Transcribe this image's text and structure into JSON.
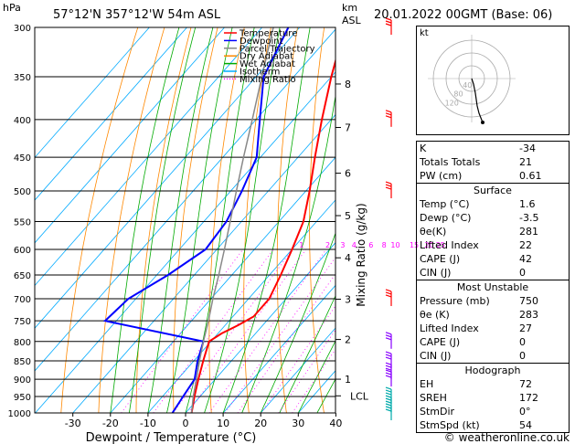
{
  "header": {
    "hpa_label": "hPa",
    "location": "57°12'N  357°12'W  54m  ASL",
    "km_label": "km",
    "asl_label": "ASL",
    "datetime": "20.01.2022  00GMT  (Base: 06)"
  },
  "footer": {
    "credit": "© weatheronline.co.uk"
  },
  "legend": [
    {
      "label": "Temperature",
      "color": "#ff0000"
    },
    {
      "label": "Dewpoint",
      "color": "#0000ff"
    },
    {
      "label": "Parcel Trajectory",
      "color": "#888888"
    },
    {
      "label": "Dry Adiabat",
      "color": "#ff8800"
    },
    {
      "label": "Wet Adiabat",
      "color": "#00aa00"
    },
    {
      "label": "Isotherm",
      "color": "#00aaff"
    },
    {
      "label": "Mixing Ratio",
      "color": "#ff00ff"
    }
  ],
  "chart_data": {
    "type": "line",
    "subtype": "skew-t log-p",
    "xlabel": "Dewpoint / Temperature (°C)",
    "ylabel_right": "Mixing Ratio (g/kg)",
    "x_ticks": [
      -30,
      -20,
      -10,
      0,
      10,
      20,
      30,
      40
    ],
    "pressure_levels": [
      300,
      350,
      400,
      450,
      500,
      550,
      600,
      650,
      700,
      750,
      800,
      850,
      900,
      950,
      1000
    ],
    "km_ticks": [
      {
        "km": "8",
        "p": 358
      },
      {
        "km": "7",
        "p": 410
      },
      {
        "km": "6",
        "p": 473
      },
      {
        "km": "5",
        "p": 540
      },
      {
        "km": "4",
        "p": 616
      },
      {
        "km": "3",
        "p": 701
      },
      {
        "km": "2",
        "p": 795
      },
      {
        "km": "1",
        "p": 900
      },
      {
        "km": "LCL",
        "p": 948
      }
    ],
    "mixing_ratio_labels": [
      {
        "label": "1",
        "p": 600,
        "t": -7.5
      },
      {
        "label": "2",
        "p": 600,
        "t": -0.5
      },
      {
        "label": "3",
        "p": 600,
        "t": 3.5
      },
      {
        "label": "4",
        "p": 600,
        "t": 6.5
      },
      {
        "label": "6",
        "p": 600,
        "t": 11
      },
      {
        "label": "8",
        "p": 600,
        "t": 14.5
      },
      {
        "label": "10",
        "p": 600,
        "t": 17.5
      },
      {
        "label": "15",
        "p": 600,
        "t": 22.5
      },
      {
        "label": "20",
        "p": 600,
        "t": 26.5
      },
      {
        "label": "25",
        "p": 600,
        "t": 29.5
      }
    ],
    "series": [
      {
        "name": "Temperature",
        "color": "#ff0000",
        "points": [
          [
            1000,
            1.6
          ],
          [
            950,
            -1.5
          ],
          [
            900,
            -4.5
          ],
          [
            850,
            -7.5
          ],
          [
            800,
            -10.5
          ],
          [
            780,
            -9
          ],
          [
            760,
            -6.5
          ],
          [
            740,
            -4.5
          ],
          [
            700,
            -4.5
          ],
          [
            650,
            -7
          ],
          [
            600,
            -10
          ],
          [
            550,
            -13.5
          ],
          [
            500,
            -19
          ],
          [
            450,
            -25.5
          ],
          [
            400,
            -32.5
          ],
          [
            350,
            -40
          ],
          [
            300,
            -48
          ]
        ]
      },
      {
        "name": "Dewpoint",
        "color": "#0000ff",
        "points": [
          [
            1000,
            -3.5
          ],
          [
            950,
            -4.5
          ],
          [
            900,
            -5.5
          ],
          [
            850,
            -9
          ],
          [
            800,
            -12
          ],
          [
            750,
            -43
          ],
          [
            700,
            -42
          ],
          [
            650,
            -37
          ],
          [
            600,
            -33
          ],
          [
            550,
            -34
          ],
          [
            500,
            -37
          ],
          [
            450,
            -41
          ],
          [
            400,
            -49
          ],
          [
            350,
            -58
          ],
          [
            300,
            -63
          ]
        ]
      },
      {
        "name": "Parcel Trajectory",
        "color": "#888888",
        "points": [
          [
            1000,
            1.6
          ],
          [
            950,
            -1.8
          ],
          [
            900,
            -5
          ],
          [
            850,
            -8.5
          ],
          [
            800,
            -12
          ],
          [
            750,
            -15.5
          ],
          [
            700,
            -19.5
          ],
          [
            650,
            -23.5
          ],
          [
            600,
            -28
          ],
          [
            550,
            -33
          ],
          [
            500,
            -38.5
          ],
          [
            450,
            -44.5
          ],
          [
            400,
            -51
          ],
          [
            350,
            -58.5
          ],
          [
            300,
            -67
          ]
        ]
      }
    ],
    "wind_barbs": [
      300,
      400,
      500,
      700,
      800,
      850,
      880,
      900,
      950,
      975,
      1000
    ],
    "hodograph": {
      "label": "kt",
      "ring_labels": [
        "40",
        "80",
        "120"
      ],
      "track": [
        [
          0,
          0
        ],
        [
          2,
          -6
        ],
        [
          4,
          -16
        ],
        [
          6,
          -30
        ],
        [
          8,
          -38
        ],
        [
          12,
          -48
        ]
      ]
    }
  },
  "indices": {
    "top": [
      {
        "k": "K",
        "v": "-34"
      },
      {
        "k": "Totals Totals",
        "v": "21"
      },
      {
        "k": "PW (cm)",
        "v": "0.61"
      }
    ],
    "surface": {
      "title": "Surface",
      "rows": [
        {
          "k": "Temp (°C)",
          "v": "1.6"
        },
        {
          "k": "Dewp (°C)",
          "v": "-3.5"
        },
        {
          "k": "θe(K)",
          "v": "281"
        },
        {
          "k": "Lifted Index",
          "v": "22"
        },
        {
          "k": "CAPE (J)",
          "v": "42"
        },
        {
          "k": "CIN (J)",
          "v": "0"
        }
      ]
    },
    "most_unstable": {
      "title": "Most Unstable",
      "rows": [
        {
          "k": "Pressure (mb)",
          "v": "750"
        },
        {
          "k": "θe (K)",
          "v": "283"
        },
        {
          "k": "Lifted Index",
          "v": "27"
        },
        {
          "k": "CAPE (J)",
          "v": "0"
        },
        {
          "k": "CIN (J)",
          "v": "0"
        }
      ]
    },
    "hodograph": {
      "title": "Hodograph",
      "rows": [
        {
          "k": "EH",
          "v": "72"
        },
        {
          "k": "SREH",
          "v": "172"
        },
        {
          "k": "StmDir",
          "v": "0°"
        },
        {
          "k": "StmSpd (kt)",
          "v": "54"
        }
      ]
    }
  }
}
